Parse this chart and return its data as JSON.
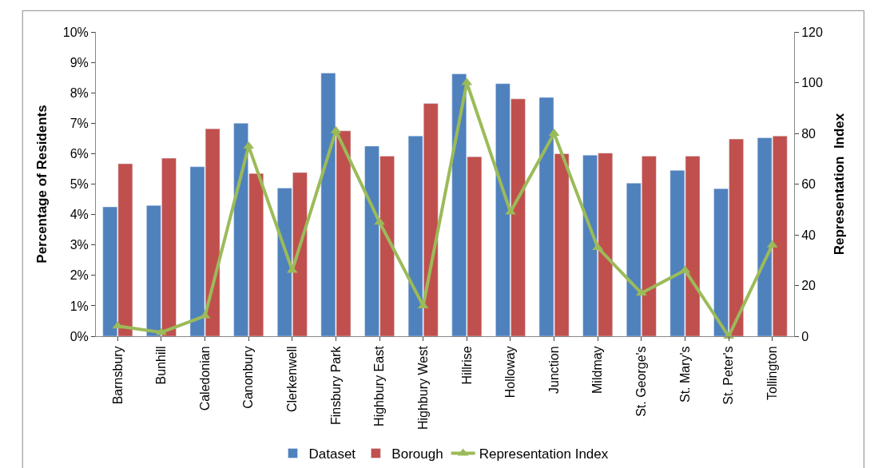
{
  "chart_data": {
    "type": "bar",
    "ylabel": "Percentage of Residents",
    "y2label": "Representation  Index",
    "categories": [
      "Barnsbury",
      "Bunhill",
      "Caledonian",
      "Canonbury",
      "Clerkenwell",
      "Finsbury Park",
      "Highbury East",
      "Highbury West",
      "Hillrise",
      "Holloway",
      "Junction",
      "Mildmay",
      "St. George's",
      "St. Mary's",
      "St. Peter's",
      "Tollington"
    ],
    "series": [
      {
        "name": "Dataset",
        "color": "#4f81bd",
        "values": [
          4.25,
          4.3,
          5.57,
          7.0,
          4.87,
          8.65,
          6.25,
          6.58,
          8.62,
          8.3,
          7.85,
          5.95,
          5.03,
          5.45,
          4.85,
          6.52
        ]
      },
      {
        "name": "Borough",
        "color": "#c0504d",
        "values": [
          5.67,
          5.85,
          6.82,
          5.35,
          5.38,
          6.75,
          5.92,
          7.65,
          5.9,
          7.8,
          6.0,
          6.02,
          5.92,
          5.92,
          6.48,
          6.58
        ]
      },
      {
        "name": "Representation Index",
        "color": "#9bbb59",
        "type": "line",
        "axis": "y2",
        "marker": "triangle",
        "values": [
          4,
          1.5,
          8,
          75,
          26,
          81,
          45,
          12,
          100,
          49,
          80,
          35,
          17,
          26,
          0,
          36
        ]
      }
    ],
    "ylim": [
      0,
      10
    ],
    "yticks": [
      {
        "value": 0,
        "label": "0%"
      },
      {
        "value": 1,
        "label": "1%"
      },
      {
        "value": 2,
        "label": "2%"
      },
      {
        "value": 3,
        "label": "3%"
      },
      {
        "value": 4,
        "label": "4%"
      },
      {
        "value": 5,
        "label": "5%"
      },
      {
        "value": 6,
        "label": "6%"
      },
      {
        "value": 7,
        "label": "7%"
      },
      {
        "value": 8,
        "label": "8%"
      },
      {
        "value": 9,
        "label": "9%"
      },
      {
        "value": 10,
        "label": "10%"
      }
    ],
    "y2lim": [
      0,
      120
    ],
    "y2ticks": [
      0,
      20,
      40,
      60,
      80,
      100,
      120
    ],
    "legend": "bottom"
  }
}
